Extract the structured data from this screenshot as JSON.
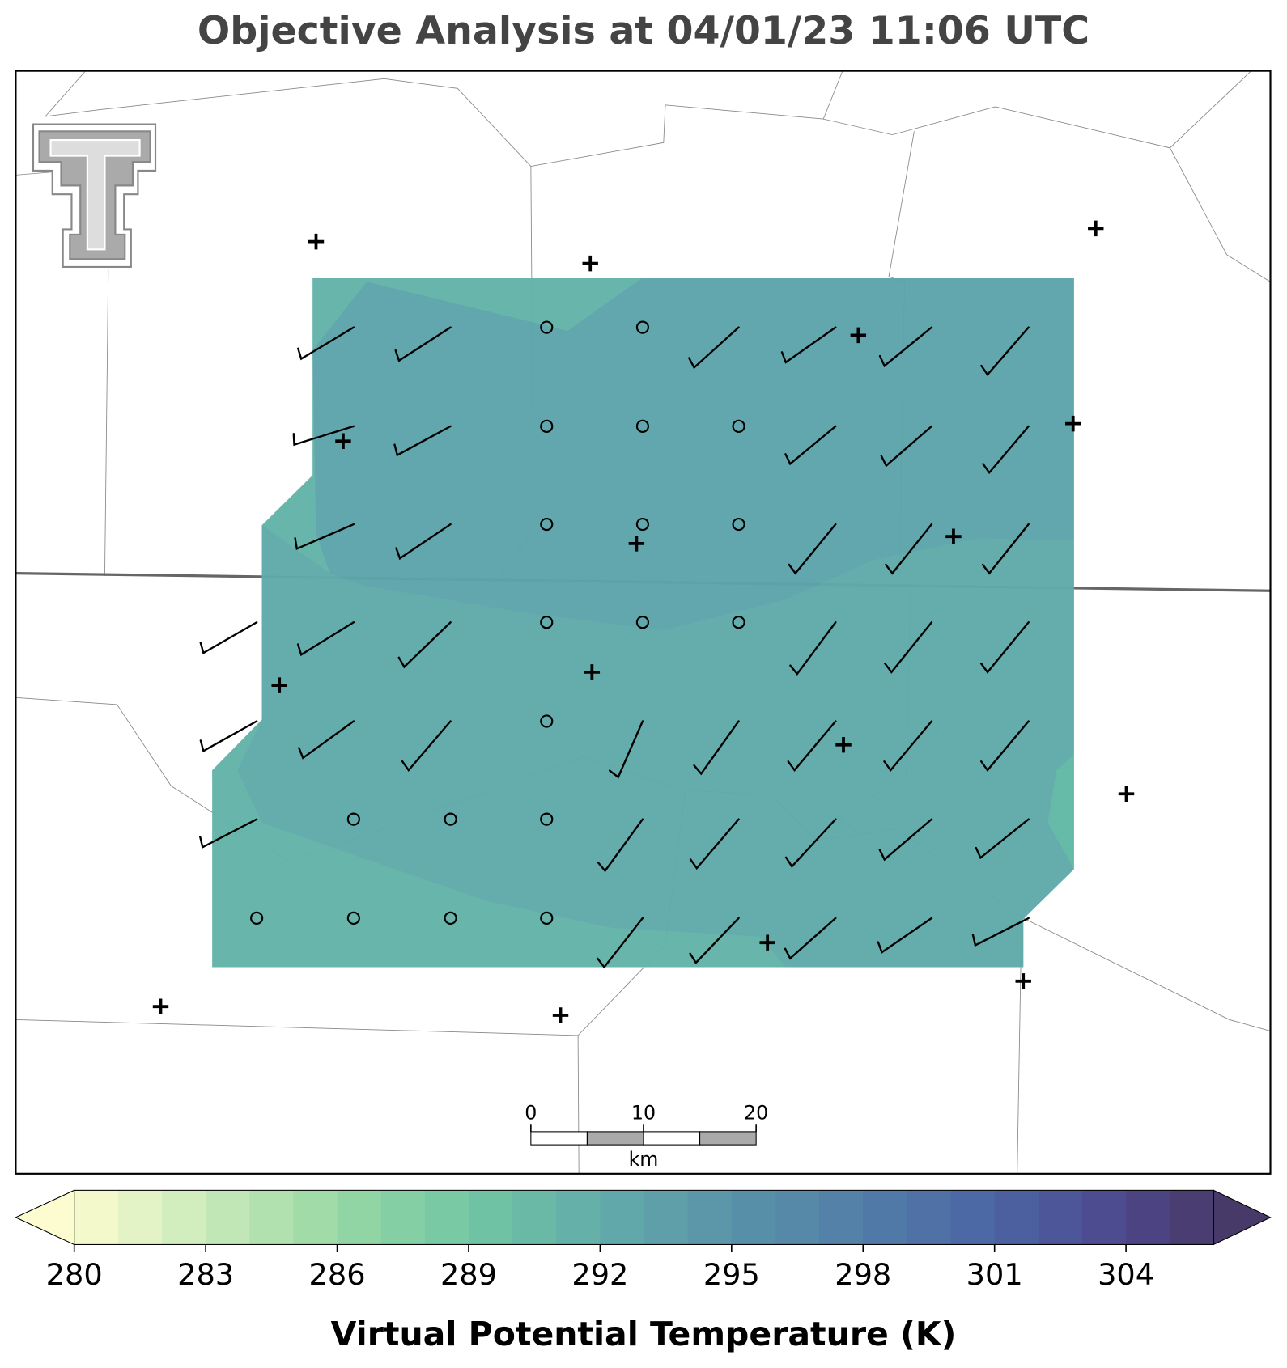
{
  "title": "Objective Analysis at 04/01/23 11:06 UTC",
  "colorbar": {
    "label": "Virtual Potential Temperature (K)",
    "lim": [
      280,
      306
    ],
    "ticks": [
      280,
      283,
      286,
      289,
      292,
      295,
      298,
      301,
      304
    ],
    "extend": "both"
  },
  "scale_bar": {
    "ticks": [
      0,
      10,
      20
    ],
    "unit": "km"
  }
}
